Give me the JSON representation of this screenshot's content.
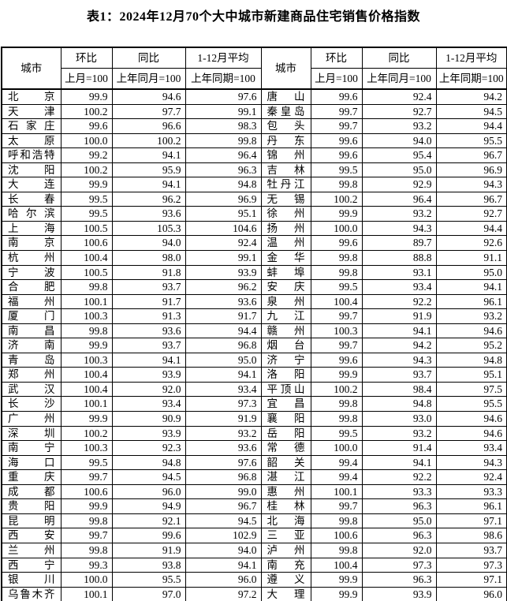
{
  "title": "表1：2024年12月70个大中城市新建商品住宅销售价格指数",
  "header": {
    "city": "城市",
    "mom": "环比",
    "mom_base": "上月=100",
    "yoy": "同比",
    "yoy_base": "上年同月=100",
    "avg": "1-12月平均",
    "avg_base": "上年同期=100"
  },
  "rows": [
    {
      "lcity": "北京",
      "lmom": "99.9",
      "lyoy": "94.6",
      "lavg": "97.6",
      "rcity": "唐山",
      "rmom": "99.6",
      "ryoy": "92.4",
      "ravg": "94.2"
    },
    {
      "lcity": "天津",
      "lmom": "100.2",
      "lyoy": "97.7",
      "lavg": "99.1",
      "rcity": "秦皇岛",
      "rmom": "99.7",
      "ryoy": "92.7",
      "ravg": "94.5"
    },
    {
      "lcity": "石家庄",
      "lmom": "99.6",
      "lyoy": "96.6",
      "lavg": "98.3",
      "rcity": "包头",
      "rmom": "99.7",
      "ryoy": "93.2",
      "ravg": "94.4"
    },
    {
      "lcity": "太原",
      "lmom": "100.0",
      "lyoy": "100.2",
      "lavg": "99.8",
      "rcity": "丹东",
      "rmom": "99.6",
      "ryoy": "94.0",
      "ravg": "95.5"
    },
    {
      "lcity": "呼和浩特",
      "lmom": "99.2",
      "lyoy": "94.1",
      "lavg": "96.4",
      "rcity": "锦州",
      "rmom": "99.6",
      "ryoy": "95.4",
      "ravg": "96.7"
    },
    {
      "lcity": "沈阳",
      "lmom": "100.2",
      "lyoy": "95.9",
      "lavg": "96.3",
      "rcity": "吉林",
      "rmom": "99.5",
      "ryoy": "95.0",
      "ravg": "96.9"
    },
    {
      "lcity": "大连",
      "lmom": "99.9",
      "lyoy": "94.1",
      "lavg": "94.8",
      "rcity": "牡丹江",
      "rmom": "99.8",
      "ryoy": "92.9",
      "ravg": "94.3"
    },
    {
      "lcity": "长春",
      "lmom": "99.5",
      "lyoy": "96.2",
      "lavg": "96.9",
      "rcity": "无锡",
      "rmom": "100.2",
      "ryoy": "96.4",
      "ravg": "96.7"
    },
    {
      "lcity": "哈尔滨",
      "lmom": "99.5",
      "lyoy": "93.6",
      "lavg": "95.1",
      "rcity": "徐州",
      "rmom": "99.9",
      "ryoy": "93.2",
      "ravg": "92.7"
    },
    {
      "lcity": "上海",
      "lmom": "100.5",
      "lyoy": "105.3",
      "lavg": "104.6",
      "rcity": "扬州",
      "rmom": "100.0",
      "ryoy": "94.3",
      "ravg": "94.4"
    },
    {
      "lcity": "南京",
      "lmom": "100.6",
      "lyoy": "94.0",
      "lavg": "92.4",
      "rcity": "温州",
      "rmom": "99.6",
      "ryoy": "89.7",
      "ravg": "92.6"
    },
    {
      "lcity": "杭州",
      "lmom": "100.4",
      "lyoy": "98.0",
      "lavg": "99.1",
      "rcity": "金华",
      "rmom": "99.8",
      "ryoy": "88.8",
      "ravg": "91.1"
    },
    {
      "lcity": "宁波",
      "lmom": "100.5",
      "lyoy": "91.8",
      "lavg": "93.9",
      "rcity": "蚌埠",
      "rmom": "99.8",
      "ryoy": "93.1",
      "ravg": "95.0"
    },
    {
      "lcity": "合肥",
      "lmom": "99.8",
      "lyoy": "93.7",
      "lavg": "96.2",
      "rcity": "安庆",
      "rmom": "99.5",
      "ryoy": "93.4",
      "ravg": "94.1"
    },
    {
      "lcity": "福州",
      "lmom": "100.1",
      "lyoy": "91.7",
      "lavg": "93.6",
      "rcity": "泉州",
      "rmom": "100.4",
      "ryoy": "92.2",
      "ravg": "96.1"
    },
    {
      "lcity": "厦门",
      "lmom": "100.3",
      "lyoy": "91.3",
      "lavg": "91.7",
      "rcity": "九江",
      "rmom": "99.7",
      "ryoy": "91.9",
      "ravg": "93.2"
    },
    {
      "lcity": "南昌",
      "lmom": "99.8",
      "lyoy": "93.6",
      "lavg": "94.4",
      "rcity": "赣州",
      "rmom": "100.3",
      "ryoy": "94.1",
      "ravg": "94.6"
    },
    {
      "lcity": "济南",
      "lmom": "99.9",
      "lyoy": "93.7",
      "lavg": "96.8",
      "rcity": "烟台",
      "rmom": "99.7",
      "ryoy": "94.2",
      "ravg": "95.2"
    },
    {
      "lcity": "青岛",
      "lmom": "100.3",
      "lyoy": "94.1",
      "lavg": "95.0",
      "rcity": "济宁",
      "rmom": "99.6",
      "ryoy": "94.3",
      "ravg": "94.8"
    },
    {
      "lcity": "郑州",
      "lmom": "100.4",
      "lyoy": "93.9",
      "lavg": "94.1",
      "rcity": "洛阳",
      "rmom": "99.9",
      "ryoy": "93.7",
      "ravg": "95.1"
    },
    {
      "lcity": "武汉",
      "lmom": "100.4",
      "lyoy": "92.0",
      "lavg": "93.4",
      "rcity": "平顶山",
      "rmom": "100.2",
      "ryoy": "98.4",
      "ravg": "97.5"
    },
    {
      "lcity": "长沙",
      "lmom": "100.1",
      "lyoy": "93.4",
      "lavg": "97.3",
      "rcity": "宜昌",
      "rmom": "99.8",
      "ryoy": "94.8",
      "ravg": "95.5"
    },
    {
      "lcity": "广州",
      "lmom": "99.9",
      "lyoy": "90.9",
      "lavg": "91.9",
      "rcity": "襄阳",
      "rmom": "99.8",
      "ryoy": "93.0",
      "ravg": "94.6"
    },
    {
      "lcity": "深圳",
      "lmom": "100.2",
      "lyoy": "93.9",
      "lavg": "93.2",
      "rcity": "岳阳",
      "rmom": "99.5",
      "ryoy": "93.2",
      "ravg": "94.6"
    },
    {
      "lcity": "南宁",
      "lmom": "100.3",
      "lyoy": "92.3",
      "lavg": "93.6",
      "rcity": "常德",
      "rmom": "100.0",
      "ryoy": "91.4",
      "ravg": "93.4"
    },
    {
      "lcity": "海口",
      "lmom": "99.5",
      "lyoy": "94.8",
      "lavg": "97.6",
      "rcity": "韶关",
      "rmom": "99.4",
      "ryoy": "94.1",
      "ravg": "94.3"
    },
    {
      "lcity": "重庆",
      "lmom": "99.7",
      "lyoy": "94.5",
      "lavg": "96.8",
      "rcity": "湛江",
      "rmom": "99.4",
      "ryoy": "92.2",
      "ravg": "92.4"
    },
    {
      "lcity": "成都",
      "lmom": "100.6",
      "lyoy": "96.0",
      "lavg": "99.0",
      "rcity": "惠州",
      "rmom": "100.1",
      "ryoy": "93.3",
      "ravg": "93.3"
    },
    {
      "lcity": "贵阳",
      "lmom": "99.9",
      "lyoy": "94.9",
      "lavg": "96.7",
      "rcity": "桂林",
      "rmom": "99.7",
      "ryoy": "96.3",
      "ravg": "96.1"
    },
    {
      "lcity": "昆明",
      "lmom": "99.8",
      "lyoy": "92.1",
      "lavg": "94.5",
      "rcity": "北海",
      "rmom": "99.8",
      "ryoy": "95.0",
      "ravg": "97.1"
    },
    {
      "lcity": "西安",
      "lmom": "99.7",
      "lyoy": "99.6",
      "lavg": "102.9",
      "rcity": "三亚",
      "rmom": "100.6",
      "ryoy": "96.3",
      "ravg": "98.6"
    },
    {
      "lcity": "兰州",
      "lmom": "99.8",
      "lyoy": "91.9",
      "lavg": "94.0",
      "rcity": "泸州",
      "rmom": "99.8",
      "ryoy": "92.0",
      "ravg": "93.7"
    },
    {
      "lcity": "西宁",
      "lmom": "99.3",
      "lyoy": "93.8",
      "lavg": "94.1",
      "rcity": "南充",
      "rmom": "100.4",
      "ryoy": "97.3",
      "ravg": "97.3"
    },
    {
      "lcity": "银川",
      "lmom": "100.0",
      "lyoy": "95.5",
      "lavg": "96.0",
      "rcity": "遵义",
      "rmom": "99.9",
      "ryoy": "96.3",
      "ravg": "97.1"
    },
    {
      "lcity": "乌鲁木齐",
      "lmom": "100.1",
      "lyoy": "97.0",
      "lavg": "97.2",
      "rcity": "大理",
      "rmom": "99.9",
      "ryoy": "93.9",
      "ravg": "96.0"
    }
  ]
}
